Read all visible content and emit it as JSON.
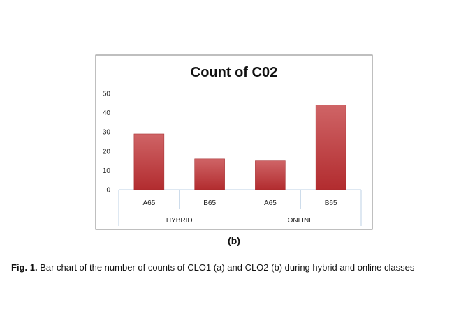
{
  "chart_data": {
    "type": "bar",
    "title": "Count of C02",
    "categories": [
      "A65",
      "B65",
      "A65",
      "B65"
    ],
    "groups": [
      {
        "label": "HYBRID",
        "categories": [
          "A65",
          "B65"
        ]
      },
      {
        "label": "ONLINE",
        "categories": [
          "A65",
          "B65"
        ]
      }
    ],
    "series": [
      {
        "values": [
          29,
          16,
          15,
          44
        ]
      }
    ],
    "yticks": [
      0,
      10,
      20,
      30,
      40,
      50
    ],
    "ylim": [
      0,
      50
    ],
    "legend": "none",
    "grid": false,
    "bar_color": "#c0393b"
  },
  "panel_label": "(b)",
  "caption": {
    "label": "Fig. 1.",
    "text": "Bar chart of the number of counts of CLO1 (a) and CLO2 (b) during hybrid and online classes"
  }
}
